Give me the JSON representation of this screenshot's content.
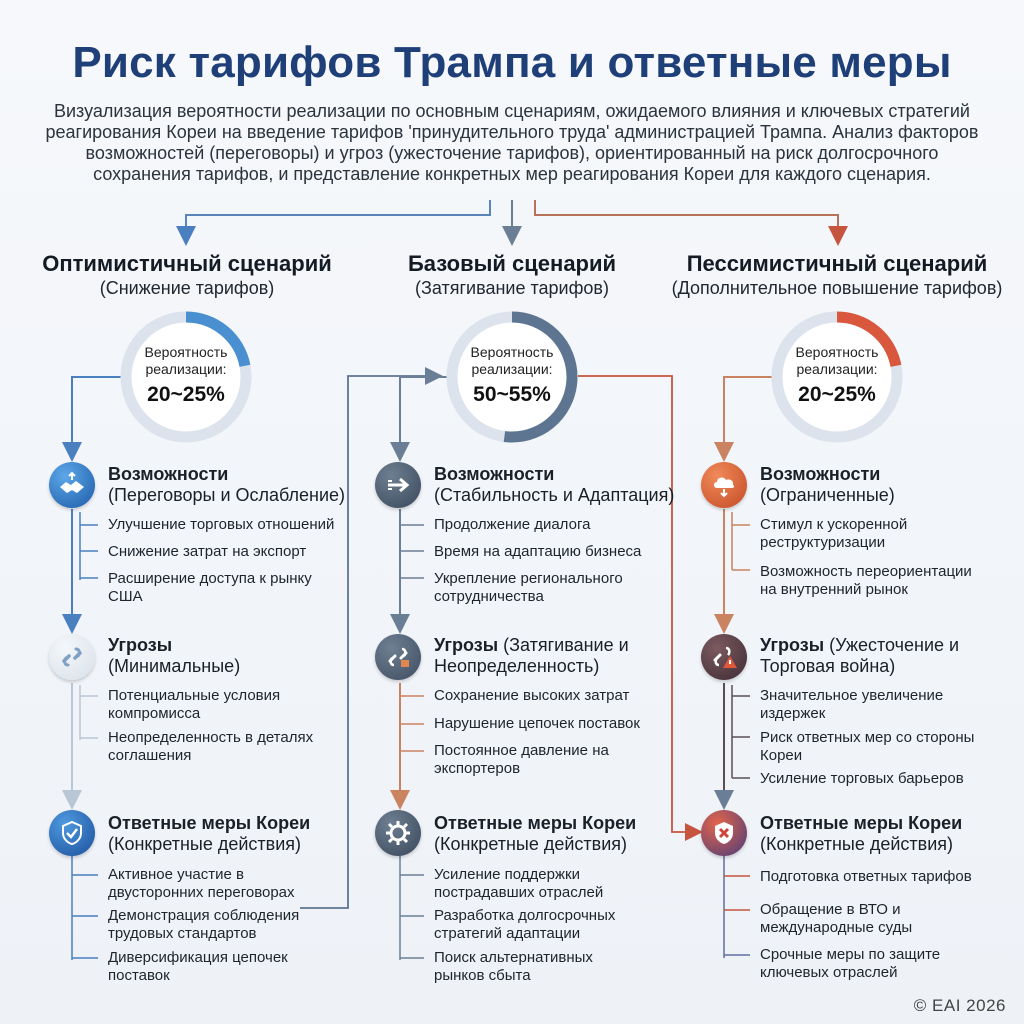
{
  "header": {
    "title": "Риск тарифов Трампа и ответные меры",
    "subtitle": "Визуализация вероятности реализации по основным сценариям, ожидаемого влияния и ключевых стратегий реагирования Кореи на введение тарифов 'принудительного труда' администрацией Трампа. Анализ факторов возможностей (переговоры) и угроз (ужесточение тарифов), ориентированный на риск долгосрочного сохранения тарифов, и представление конкретных мер реагирования Кореи для каждого сценария."
  },
  "scenarios": [
    {
      "name": "Оптимистичный сценарий",
      "subtitle": "(Снижение тарифов)",
      "probability_label": "Вероятность реализации:",
      "probability_value": "20~25%",
      "probability_fraction": 0.22,
      "accent": "#4a8fd0",
      "opportunities": {
        "icon": "handshake-icon",
        "title": "Возможности",
        "subtitle": "(Переговоры и Ослабление)",
        "items": [
          "Улучшение торговых отношений",
          "Снижение затрат на экспорт",
          "Расширение доступа к рынку США"
        ]
      },
      "threats": {
        "icon": "broken-link-icon",
        "title": "Угрозы",
        "subtitle": "(Минимальные)",
        "items": [
          "Потенциальные условия компромисса",
          "Неопределенность в деталях соглашения"
        ]
      },
      "response": {
        "icon": "shield-check-icon",
        "title": "Ответные меры Кореи",
        "subtitle": "(Конкретные действия)",
        "items": [
          "Активное участие в двусторонних переговорах",
          "Демонстрация соблюдения трудовых стандартов",
          "Диверсификация цепочек поставок"
        ]
      }
    },
    {
      "name": "Базовый сценарий",
      "subtitle": "(Затягивание тарифов)",
      "probability_label": "Вероятность реализации:",
      "probability_value": "50~55%",
      "probability_fraction": 0.52,
      "accent": "#5d7590",
      "opportunities": {
        "icon": "arrow-right-icon",
        "title": "Возможности",
        "subtitle": "(Стабильность и Адаптация)",
        "items": [
          "Продолжение диалога",
          "Время на адаптацию бизнеса",
          "Укрепление регионального сотрудничества"
        ]
      },
      "threats": {
        "icon": "broken-link-icon",
        "title": "Угрозы",
        "subtitle_inline": "(Затягивание и",
        "subtitle": "Неопределенность)",
        "items": [
          "Сохранение высоких затрат",
          "Нарушение цепочек поставок",
          "Постоянное давление на экспортеров"
        ]
      },
      "response": {
        "icon": "gear-icon",
        "title": "Ответные меры Кореи",
        "subtitle": "(Конкретные действия)",
        "items": [
          "Усиление поддержки пострадавших отраслей",
          "Разработка долгосрочных стратегий адаптации",
          "Поиск альтернативных рынков сбыта"
        ]
      }
    },
    {
      "name": "Пессимистичный сценарий",
      "subtitle": "(Дополнительное повышение тарифов)",
      "probability_label": "Вероятность реализации:",
      "probability_value": "20~25%",
      "probability_fraction": 0.22,
      "accent": "#d9573d",
      "opportunities": {
        "icon": "storm-cloud-icon",
        "title": "Возможности",
        "subtitle": "(Ограниченные)",
        "items": [
          "Стимул к ускоренной реструктуризации",
          "Возможность переориентации на внутренний рынок"
        ]
      },
      "threats": {
        "icon": "broken-link-warning-icon",
        "title": "Угрозы",
        "subtitle_inline": "(Ужесточение и",
        "subtitle": "Торговая война)",
        "items": [
          "Значительное увеличение издержек",
          "Риск ответных мер со стороны Кореи",
          "Усиление торговых барьеров"
        ]
      },
      "response": {
        "icon": "shield-x-icon",
        "title": "Ответные меры Кореи",
        "subtitle": "(Конкретные действия)",
        "items": [
          "Подготовка ответных тарифов",
          "Обращение в ВТО и международные суды",
          "Срочные меры по защите ключевых отраслей"
        ]
      }
    }
  ],
  "footer": "© EAI 2026"
}
